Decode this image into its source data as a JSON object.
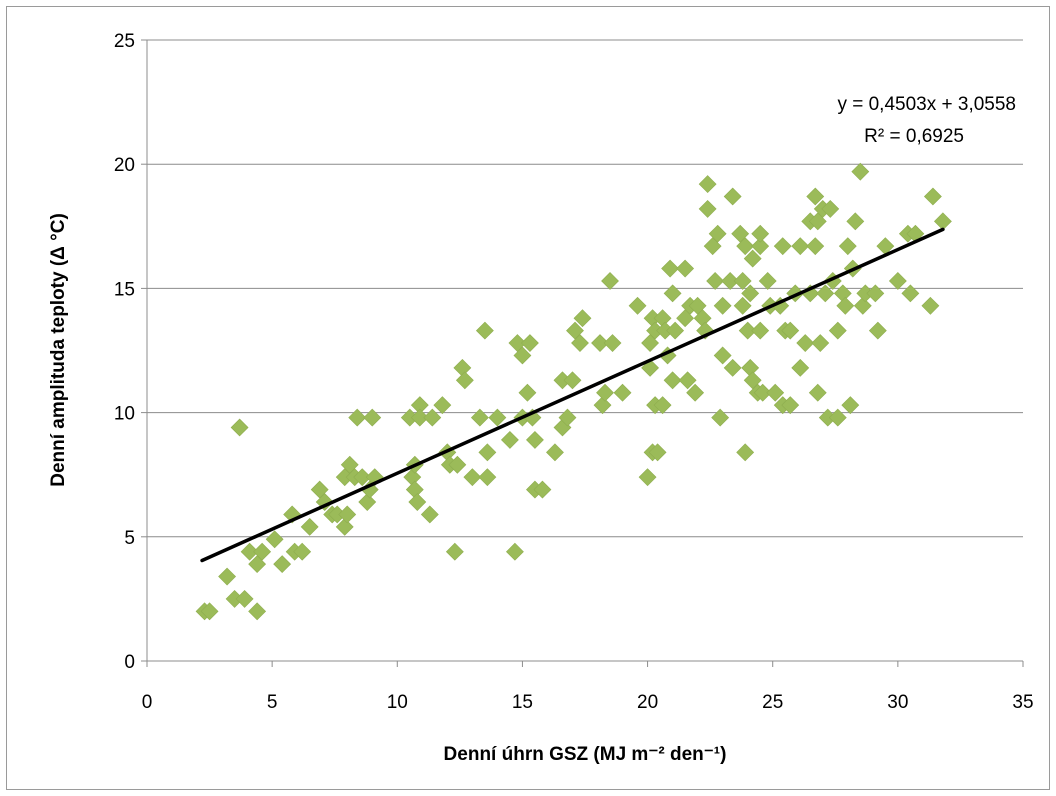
{
  "chart_data": {
    "type": "scatter",
    "xlabel": "Denní úhrn GSZ (MJ m⁻² den⁻¹)",
    "ylabel": "Denní amplituda teploty (Δ °C)",
    "xlim": [
      0,
      35
    ],
    "ylim": [
      0,
      25
    ],
    "xticks": [
      "0",
      "5",
      "10",
      "15",
      "20",
      "25",
      "30",
      "35"
    ],
    "yticks": [
      "0",
      "5",
      "10",
      "15",
      "20",
      "25"
    ],
    "grid": "horizontal",
    "legend": "none",
    "marker": "diamond",
    "marker_color": "#9BBB59",
    "trendline": {
      "equation": "y = 0,4503x + 3,0558",
      "r2": "R² = 0,6925",
      "slope": 0.4503,
      "intercept": 3.0558,
      "x_range": [
        2.2,
        31.8
      ],
      "color": "#000000"
    },
    "points": [
      [
        2.3,
        2.0
      ],
      [
        2.5,
        2.0
      ],
      [
        3.2,
        3.4
      ],
      [
        3.5,
        2.5
      ],
      [
        3.7,
        9.4
      ],
      [
        3.9,
        2.5
      ],
      [
        4.1,
        4.4
      ],
      [
        4.4,
        3.9
      ],
      [
        4.4,
        2.0
      ],
      [
        4.6,
        4.4
      ],
      [
        5.1,
        4.9
      ],
      [
        5.4,
        3.9
      ],
      [
        5.8,
        5.9
      ],
      [
        5.9,
        4.4
      ],
      [
        6.2,
        4.4
      ],
      [
        6.5,
        5.4
      ],
      [
        6.9,
        6.9
      ],
      [
        7.1,
        6.4
      ],
      [
        7.4,
        5.9
      ],
      [
        7.6,
        5.9
      ],
      [
        7.9,
        7.4
      ],
      [
        7.9,
        5.4
      ],
      [
        8.0,
        5.9
      ],
      [
        8.1,
        7.9
      ],
      [
        8.3,
        7.4
      ],
      [
        8.4,
        9.8
      ],
      [
        8.6,
        7.4
      ],
      [
        8.8,
        6.4
      ],
      [
        8.9,
        6.9
      ],
      [
        9.0,
        9.8
      ],
      [
        9.1,
        7.4
      ],
      [
        10.5,
        9.8
      ],
      [
        10.6,
        7.4
      ],
      [
        10.7,
        7.9
      ],
      [
        10.7,
        6.9
      ],
      [
        10.8,
        6.4
      ],
      [
        10.9,
        10.3
      ],
      [
        10.9,
        9.8
      ],
      [
        11.3,
        5.9
      ],
      [
        11.4,
        9.8
      ],
      [
        11.8,
        10.3
      ],
      [
        12.0,
        8.4
      ],
      [
        12.1,
        7.9
      ],
      [
        12.3,
        4.4
      ],
      [
        12.4,
        7.9
      ],
      [
        12.6,
        11.8
      ],
      [
        12.7,
        11.3
      ],
      [
        13.0,
        7.4
      ],
      [
        13.3,
        9.8
      ],
      [
        13.5,
        13.3
      ],
      [
        13.6,
        8.4
      ],
      [
        13.6,
        7.4
      ],
      [
        14.0,
        9.8
      ],
      [
        14.5,
        8.9
      ],
      [
        14.7,
        4.4
      ],
      [
        14.8,
        12.8
      ],
      [
        15.0,
        12.3
      ],
      [
        15.0,
        9.8
      ],
      [
        15.2,
        10.8
      ],
      [
        15.3,
        12.8
      ],
      [
        15.4,
        9.8
      ],
      [
        15.5,
        6.9
      ],
      [
        15.5,
        8.9
      ],
      [
        15.8,
        6.9
      ],
      [
        16.3,
        8.4
      ],
      [
        16.6,
        9.4
      ],
      [
        16.6,
        11.3
      ],
      [
        16.8,
        9.8
      ],
      [
        17.0,
        11.3
      ],
      [
        17.1,
        13.3
      ],
      [
        17.3,
        12.8
      ],
      [
        17.4,
        13.8
      ],
      [
        18.1,
        12.8
      ],
      [
        18.2,
        10.3
      ],
      [
        18.3,
        10.8
      ],
      [
        18.5,
        15.3
      ],
      [
        18.6,
        12.8
      ],
      [
        19.0,
        10.8
      ],
      [
        19.6,
        14.3
      ],
      [
        20.0,
        7.4
      ],
      [
        20.1,
        12.8
      ],
      [
        20.1,
        11.8
      ],
      [
        20.2,
        8.4
      ],
      [
        20.2,
        13.8
      ],
      [
        20.3,
        10.3
      ],
      [
        20.3,
        13.3
      ],
      [
        20.4,
        8.4
      ],
      [
        20.6,
        13.8
      ],
      [
        20.6,
        10.3
      ],
      [
        20.7,
        13.3
      ],
      [
        20.8,
        12.3
      ],
      [
        20.9,
        15.8
      ],
      [
        21.0,
        14.8
      ],
      [
        21.0,
        11.3
      ],
      [
        21.1,
        13.3
      ],
      [
        21.5,
        15.8
      ],
      [
        21.5,
        13.8
      ],
      [
        21.6,
        11.3
      ],
      [
        21.7,
        14.3
      ],
      [
        21.9,
        10.8
      ],
      [
        22.0,
        14.3
      ],
      [
        22.2,
        13.8
      ],
      [
        22.3,
        13.3
      ],
      [
        22.4,
        18.2
      ],
      [
        22.4,
        19.2
      ],
      [
        22.6,
        16.7
      ],
      [
        22.7,
        15.3
      ],
      [
        22.8,
        17.2
      ],
      [
        22.9,
        9.8
      ],
      [
        23.0,
        12.3
      ],
      [
        23.0,
        14.3
      ],
      [
        23.3,
        15.3
      ],
      [
        23.4,
        18.7
      ],
      [
        23.4,
        11.8
      ],
      [
        23.7,
        17.2
      ],
      [
        23.8,
        15.3
      ],
      [
        23.8,
        14.3
      ],
      [
        23.9,
        16.7
      ],
      [
        23.9,
        8.4
      ],
      [
        24.0,
        13.3
      ],
      [
        24.1,
        14.8
      ],
      [
        24.1,
        11.8
      ],
      [
        24.2,
        16.2
      ],
      [
        24.2,
        11.3
      ],
      [
        24.4,
        10.8
      ],
      [
        24.5,
        16.7
      ],
      [
        24.5,
        17.2
      ],
      [
        24.5,
        13.3
      ],
      [
        24.6,
        10.8
      ],
      [
        24.8,
        15.3
      ],
      [
        24.9,
        14.3
      ],
      [
        25.1,
        10.8
      ],
      [
        25.3,
        14.3
      ],
      [
        25.4,
        16.7
      ],
      [
        25.4,
        10.3
      ],
      [
        25.5,
        13.3
      ],
      [
        25.7,
        13.3
      ],
      [
        25.7,
        10.3
      ],
      [
        25.9,
        14.8
      ],
      [
        26.1,
        16.7
      ],
      [
        26.1,
        11.8
      ],
      [
        26.3,
        12.8
      ],
      [
        26.5,
        17.7
      ],
      [
        26.5,
        14.8
      ],
      [
        26.7,
        18.7
      ],
      [
        26.7,
        16.7
      ],
      [
        26.8,
        17.7
      ],
      [
        26.8,
        10.8
      ],
      [
        26.9,
        12.8
      ],
      [
        27.0,
        18.2
      ],
      [
        27.1,
        14.8
      ],
      [
        27.2,
        9.8
      ],
      [
        27.3,
        18.2
      ],
      [
        27.4,
        15.3
      ],
      [
        27.6,
        13.3
      ],
      [
        27.6,
        9.8
      ],
      [
        27.8,
        14.8
      ],
      [
        27.9,
        14.3
      ],
      [
        28.0,
        16.7
      ],
      [
        28.1,
        10.3
      ],
      [
        28.2,
        15.8
      ],
      [
        28.3,
        17.7
      ],
      [
        28.5,
        19.7
      ],
      [
        28.6,
        14.3
      ],
      [
        28.7,
        14.8
      ],
      [
        29.1,
        14.8
      ],
      [
        29.2,
        13.3
      ],
      [
        29.5,
        16.7
      ],
      [
        30.0,
        15.3
      ],
      [
        30.4,
        17.2
      ],
      [
        30.5,
        14.8
      ],
      [
        30.7,
        17.2
      ],
      [
        31.3,
        14.3
      ],
      [
        31.4,
        18.7
      ],
      [
        31.8,
        17.7
      ]
    ]
  }
}
